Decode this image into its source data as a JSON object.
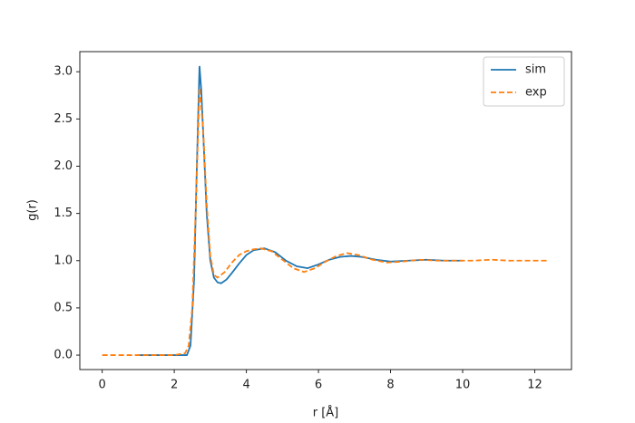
{
  "chart_data": {
    "type": "line",
    "xlabel": "r [Å]",
    "ylabel": "g(r)",
    "xlim": [
      -0.62,
      13.02
    ],
    "ylim": [
      -0.153,
      3.213
    ],
    "xticks": [
      0,
      2,
      4,
      6,
      8,
      10,
      12
    ],
    "yticks": [
      {
        "value": 0,
        "label": "0.0"
      },
      {
        "value": 0.5,
        "label": "0.5"
      },
      {
        "value": 1,
        "label": "1.0"
      },
      {
        "value": 1.5,
        "label": "1.5"
      },
      {
        "value": 2,
        "label": "2.0"
      },
      {
        "value": 2.5,
        "label": "2.5"
      },
      {
        "value": 3,
        "label": "3.0"
      }
    ],
    "legend": "upper right",
    "series": [
      {
        "name": "sim",
        "color": "#1f77b4",
        "dash": false,
        "x": [
          1.0,
          2.0,
          2.35,
          2.45,
          2.55,
          2.62,
          2.7,
          2.75,
          2.82,
          2.9,
          3.0,
          3.1,
          3.2,
          3.3,
          3.45,
          3.6,
          3.8,
          4.0,
          4.2,
          4.5,
          4.8,
          5.1,
          5.4,
          5.7,
          6.0,
          6.3,
          6.6,
          6.9,
          7.2,
          7.6,
          8.0,
          8.5,
          9.0,
          9.5,
          10.0
        ],
        "values": [
          0,
          0,
          0,
          0.1,
          0.8,
          1.9,
          3.06,
          2.8,
          2.2,
          1.5,
          1.0,
          0.82,
          0.77,
          0.76,
          0.8,
          0.87,
          0.97,
          1.06,
          1.11,
          1.13,
          1.09,
          1.0,
          0.94,
          0.92,
          0.96,
          1.01,
          1.04,
          1.05,
          1.04,
          1.01,
          0.99,
          1.0,
          1.01,
          1.0,
          1.0
        ]
      },
      {
        "name": "exp",
        "color": "#ff7f0e",
        "dash": true,
        "x": [
          0,
          1,
          2,
          2.3,
          2.4,
          2.5,
          2.6,
          2.7,
          2.8,
          2.9,
          3.0,
          3.1,
          3.2,
          3.4,
          3.6,
          3.8,
          4.0,
          4.2,
          4.4,
          4.7,
          5.0,
          5.3,
          5.6,
          5.9,
          6.2,
          6.5,
          6.8,
          7.1,
          7.5,
          7.9,
          8.3,
          8.8,
          9.3,
          9.8,
          10.3,
          10.8,
          11.3,
          11.8,
          12.4
        ],
        "values": [
          0,
          0,
          0,
          0.02,
          0.1,
          0.5,
          1.6,
          2.83,
          2.4,
          1.6,
          1.05,
          0.85,
          0.82,
          0.88,
          0.98,
          1.06,
          1.1,
          1.12,
          1.13,
          1.1,
          1.01,
          0.92,
          0.88,
          0.92,
          0.99,
          1.05,
          1.08,
          1.06,
          1.01,
          0.98,
          0.99,
          1.01,
          1.0,
          1.0,
          1.0,
          1.01,
          1.0,
          1.0,
          1.0
        ]
      }
    ]
  }
}
